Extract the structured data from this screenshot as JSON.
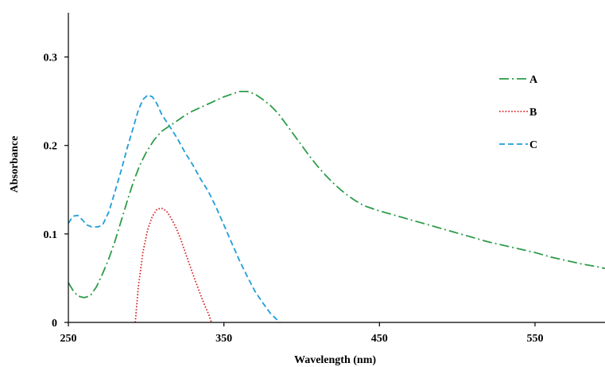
{
  "chart_data": {
    "type": "line",
    "title": "",
    "xlabel": "Wavelength (nm)",
    "ylabel": "Absorbance",
    "xlim": [
      250,
      595
    ],
    "ylim": [
      0,
      0.35
    ],
    "x_ticks": [
      250,
      350,
      450,
      550
    ],
    "x_tick_labels": [
      "250",
      "350",
      "450",
      "550"
    ],
    "y_ticks": [
      0,
      0.1,
      0.2,
      0.3
    ],
    "y_tick_labels": [
      "0",
      "0.1",
      "0.2",
      "0.3"
    ],
    "grid": false,
    "legend_position": "top-right",
    "series": [
      {
        "name": "A",
        "color": "#2e9c4a",
        "dash": "dash-dot",
        "points": [
          [
            250,
            0.045
          ],
          [
            253,
            0.036
          ],
          [
            256,
            0.03
          ],
          [
            260,
            0.028
          ],
          [
            264,
            0.03
          ],
          [
            268,
            0.04
          ],
          [
            272,
            0.055
          ],
          [
            276,
            0.072
          ],
          [
            280,
            0.092
          ],
          [
            284,
            0.115
          ],
          [
            288,
            0.138
          ],
          [
            292,
            0.16
          ],
          [
            296,
            0.178
          ],
          [
            300,
            0.192
          ],
          [
            305,
            0.206
          ],
          [
            310,
            0.216
          ],
          [
            315,
            0.222
          ],
          [
            320,
            0.228
          ],
          [
            325,
            0.234
          ],
          [
            330,
            0.239
          ],
          [
            335,
            0.243
          ],
          [
            340,
            0.247
          ],
          [
            345,
            0.251
          ],
          [
            350,
            0.255
          ],
          [
            355,
            0.258
          ],
          [
            360,
            0.261
          ],
          [
            365,
            0.261
          ],
          [
            370,
            0.258
          ],
          [
            375,
            0.252
          ],
          [
            380,
            0.245
          ],
          [
            385,
            0.236
          ],
          [
            390,
            0.224
          ],
          [
            395,
            0.212
          ],
          [
            400,
            0.2
          ],
          [
            405,
            0.188
          ],
          [
            410,
            0.177
          ],
          [
            415,
            0.167
          ],
          [
            420,
            0.158
          ],
          [
            425,
            0.15
          ],
          [
            430,
            0.143
          ],
          [
            435,
            0.137
          ],
          [
            440,
            0.132
          ],
          [
            450,
            0.126
          ],
          [
            460,
            0.121
          ],
          [
            470,
            0.116
          ],
          [
            480,
            0.111
          ],
          [
            490,
            0.106
          ],
          [
            500,
            0.101
          ],
          [
            510,
            0.096
          ],
          [
            520,
            0.091
          ],
          [
            530,
            0.087
          ],
          [
            540,
            0.083
          ],
          [
            550,
            0.079
          ],
          [
            560,
            0.074
          ],
          [
            570,
            0.07
          ],
          [
            580,
            0.066
          ],
          [
            590,
            0.063
          ],
          [
            595,
            0.061
          ]
        ]
      },
      {
        "name": "B",
        "color": "#d62728",
        "dash": "dotted",
        "points": [
          [
            293,
            0.0
          ],
          [
            295,
            0.04
          ],
          [
            298,
            0.08
          ],
          [
            301,
            0.105
          ],
          [
            304,
            0.12
          ],
          [
            307,
            0.128
          ],
          [
            310,
            0.129
          ],
          [
            313,
            0.126
          ],
          [
            316,
            0.118
          ],
          [
            319,
            0.108
          ],
          [
            322,
            0.095
          ],
          [
            325,
            0.08
          ],
          [
            328,
            0.065
          ],
          [
            331,
            0.05
          ],
          [
            334,
            0.036
          ],
          [
            337,
            0.022
          ],
          [
            340,
            0.01
          ],
          [
            342,
            0.0
          ]
        ]
      },
      {
        "name": "C",
        "color": "#1f9ed8",
        "dash": "dashed",
        "points": [
          [
            250,
            0.112
          ],
          [
            253,
            0.12
          ],
          [
            256,
            0.121
          ],
          [
            259,
            0.116
          ],
          [
            262,
            0.11
          ],
          [
            265,
            0.108
          ],
          [
            269,
            0.108
          ],
          [
            272,
            0.11
          ],
          [
            276,
            0.125
          ],
          [
            280,
            0.148
          ],
          [
            284,
            0.172
          ],
          [
            288,
            0.198
          ],
          [
            292,
            0.222
          ],
          [
            295,
            0.24
          ],
          [
            298,
            0.252
          ],
          [
            301,
            0.257
          ],
          [
            304,
            0.255
          ],
          [
            307,
            0.247
          ],
          [
            310,
            0.235
          ],
          [
            315,
            0.222
          ],
          [
            320,
            0.208
          ],
          [
            325,
            0.192
          ],
          [
            330,
            0.178
          ],
          [
            335,
            0.162
          ],
          [
            340,
            0.148
          ],
          [
            345,
            0.13
          ],
          [
            350,
            0.11
          ],
          [
            355,
            0.09
          ],
          [
            360,
            0.07
          ],
          [
            365,
            0.052
          ],
          [
            370,
            0.035
          ],
          [
            375,
            0.022
          ],
          [
            380,
            0.01
          ],
          [
            386,
            0.0
          ]
        ]
      }
    ]
  }
}
